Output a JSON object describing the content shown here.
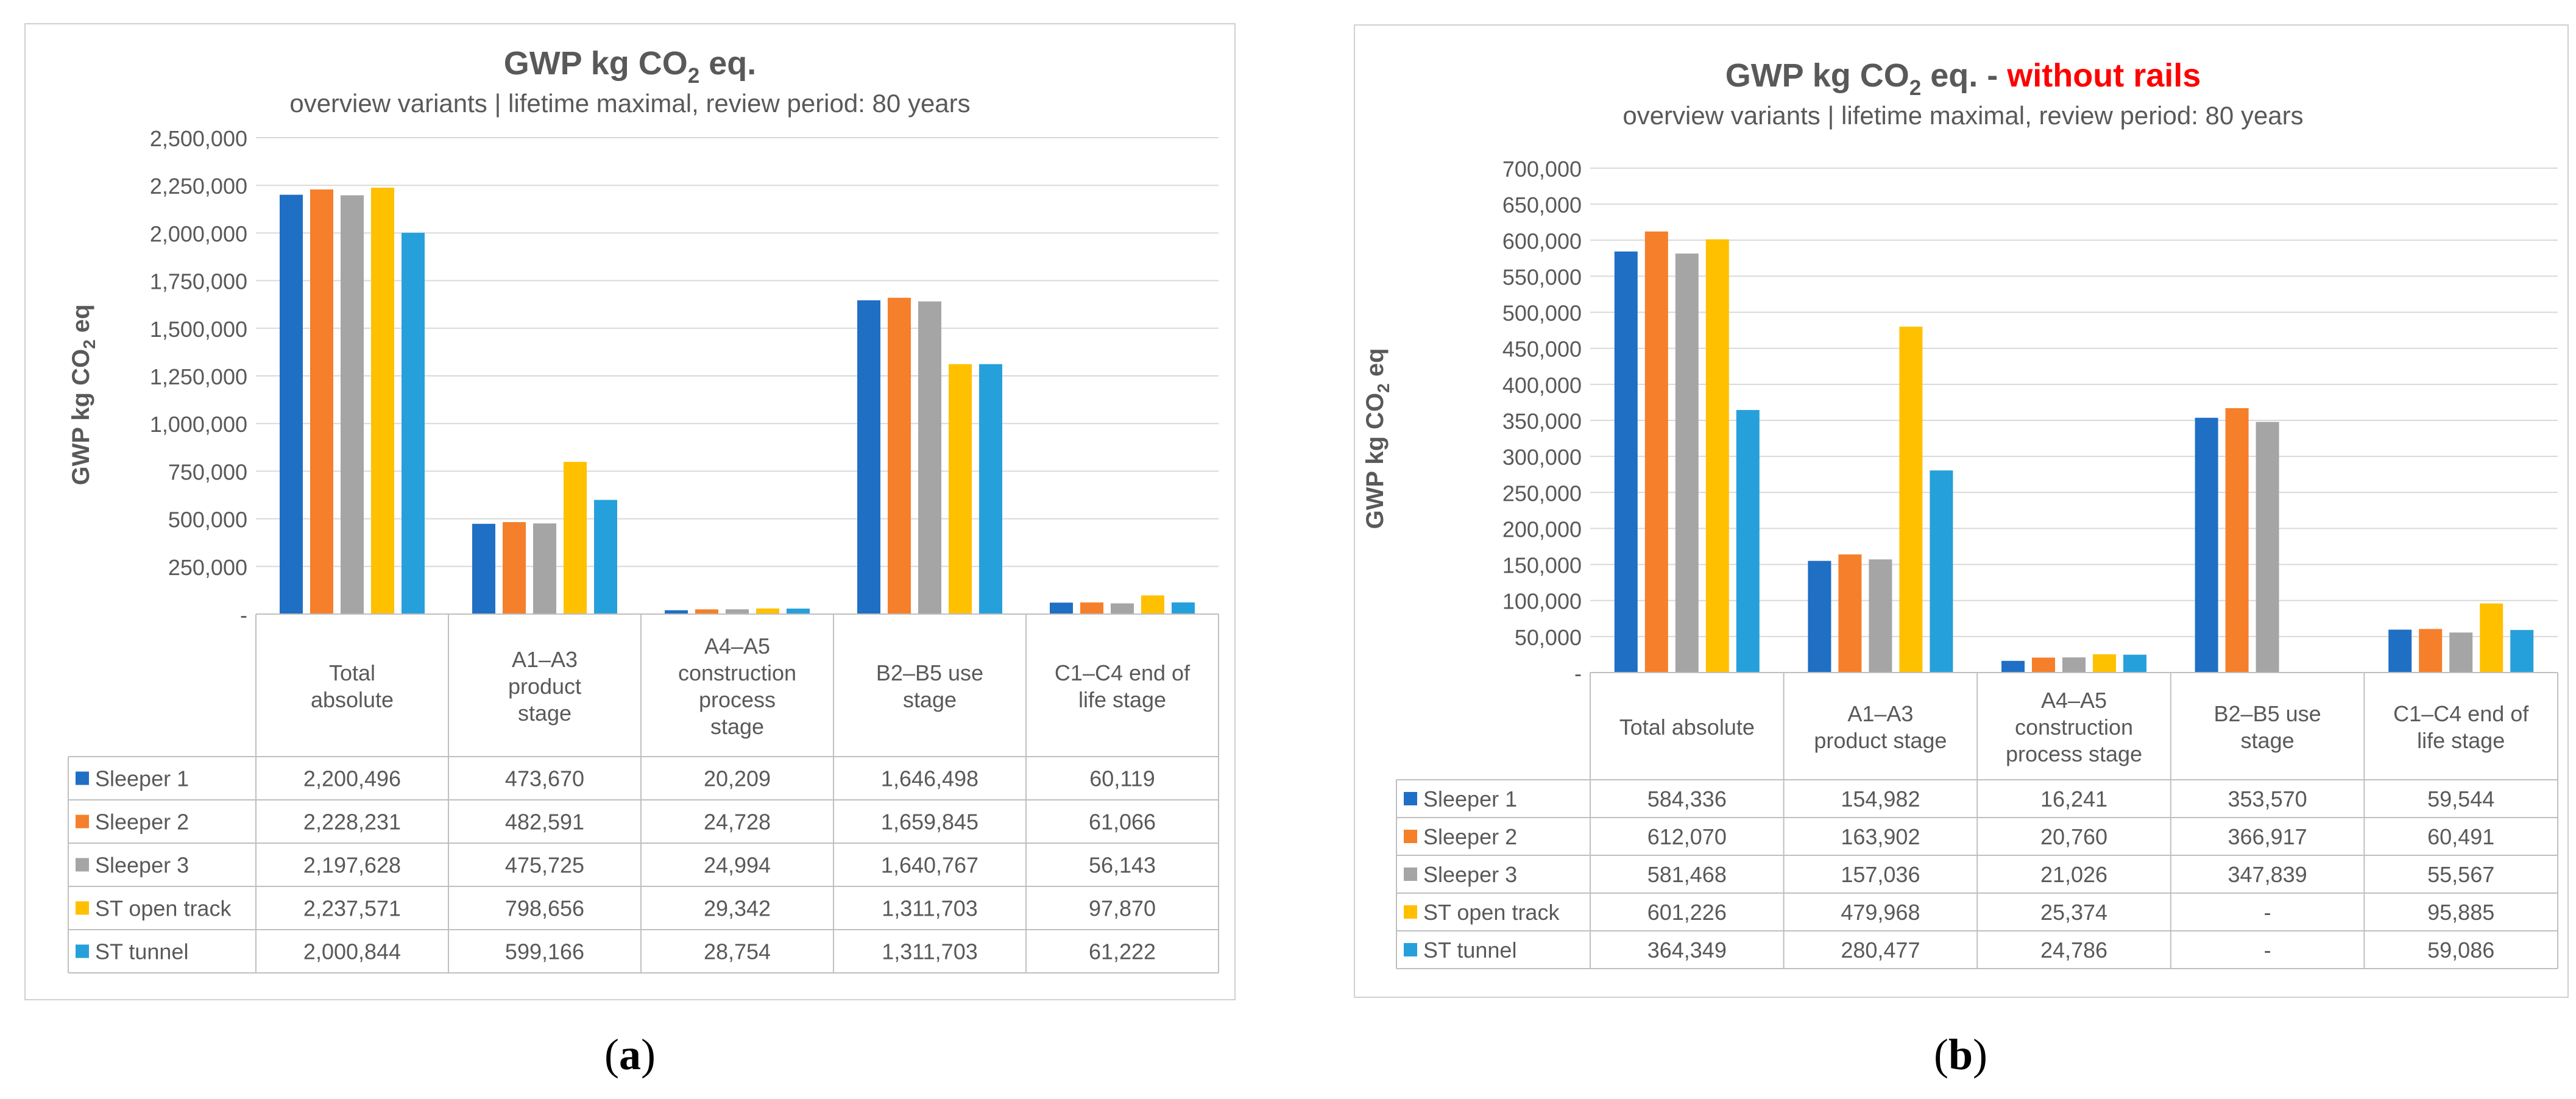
{
  "chart_data": [
    {
      "type": "bar",
      "title": "GWP kg CO",
      "title_sub": "2",
      "title_end": " eq.",
      "title_red": "",
      "subtitle": "overview variants | lifetime maximal, review period: 80 years",
      "ylabel": "GWP kg CO",
      "ylabel_sub": "2",
      "ylabel_end": " eq",
      "ylim": [
        0,
        2500000
      ],
      "yticks": [
        "-",
        "250,000",
        "500,000",
        "750,000",
        "1,000,000",
        "1,250,000",
        "1,500,000",
        "1,750,000",
        "2,000,000",
        "2,250,000",
        "2,500,000"
      ],
      "categories": [
        [
          "Total",
          "absolute"
        ],
        [
          "A1–A3",
          "product",
          "stage"
        ],
        [
          "A4–A5",
          "construction",
          "process",
          "stage"
        ],
        [
          "B2–B5 use",
          "stage"
        ],
        [
          "C1–C4 end of",
          "life stage"
        ]
      ],
      "series": [
        {
          "name": "Sleeper 1",
          "color": "#1F6FC5",
          "values": [
            2200496,
            473670,
            20209,
            1646498,
            60119
          ],
          "labels": [
            "2,200,496",
            "473,670",
            "20,209",
            "1,646,498",
            "60,119"
          ]
        },
        {
          "name": "Sleeper 2",
          "color": "#F57F2A",
          "values": [
            2228231,
            482591,
            24728,
            1659845,
            61066
          ],
          "labels": [
            "2,228,231",
            "482,591",
            "24,728",
            "1,659,845",
            "61,066"
          ]
        },
        {
          "name": "Sleeper 3",
          "color": "#A5A5A5",
          "values": [
            2197628,
            475725,
            24994,
            1640767,
            56143
          ],
          "labels": [
            "2,197,628",
            "475,725",
            "24,994",
            "1,640,767",
            "56,143"
          ]
        },
        {
          "name": "ST open track",
          "color": "#FFC000",
          "values": [
            2237571,
            798656,
            29342,
            1311703,
            97870
          ],
          "labels": [
            "2,237,571",
            "798,656",
            "29,342",
            "1,311,703",
            "97,870"
          ]
        },
        {
          "name": "ST tunnel",
          "color": "#26A0DA",
          "values": [
            2000844,
            599166,
            28754,
            1311703,
            61222
          ],
          "labels": [
            "2,000,844",
            "599,166",
            "28,754",
            "1,311,703",
            "61,222"
          ]
        }
      ]
    },
    {
      "type": "bar",
      "title": "GWP kg CO",
      "title_sub": "2",
      "title_end": " eq. - ",
      "title_red": "without rails",
      "subtitle": "overview variants | lifetime maximal, review period: 80 years",
      "ylabel": "GWP kg CO",
      "ylabel_sub": "2",
      "ylabel_end": " eq",
      "ylim": [
        0,
        700000
      ],
      "yticks": [
        "-",
        "50,000",
        "100,000",
        "150,000",
        "200,000",
        "250,000",
        "300,000",
        "350,000",
        "400,000",
        "450,000",
        "500,000",
        "550,000",
        "600,000",
        "650,000",
        "700,000"
      ],
      "categories": [
        [
          "Total absolute"
        ],
        [
          "A1–A3",
          "product stage"
        ],
        [
          "A4–A5",
          "construction",
          "process stage"
        ],
        [
          "B2–B5 use",
          "stage"
        ],
        [
          "C1–C4 end of",
          "life stage"
        ]
      ],
      "series": [
        {
          "name": "Sleeper 1",
          "color": "#1F6FC5",
          "values": [
            584336,
            154982,
            16241,
            353570,
            59544
          ],
          "labels": [
            "584,336",
            "154,982",
            "16,241",
            "353,570",
            "59,544"
          ]
        },
        {
          "name": "Sleeper 2",
          "color": "#F57F2A",
          "values": [
            612070,
            163902,
            20760,
            366917,
            60491
          ],
          "labels": [
            "612,070",
            "163,902",
            "20,760",
            "366,917",
            "60,491"
          ]
        },
        {
          "name": "Sleeper 3",
          "color": "#A5A5A5",
          "values": [
            581468,
            157036,
            21026,
            347839,
            55567
          ],
          "labels": [
            "581,468",
            "157,036",
            "21,026",
            "347,839",
            "55,567"
          ]
        },
        {
          "name": "ST open track",
          "color": "#FFC000",
          "values": [
            601226,
            479968,
            25374,
            0,
            95885
          ],
          "labels": [
            "601,226",
            "479,968",
            "25,374",
            "-",
            "95,885"
          ]
        },
        {
          "name": "ST tunnel",
          "color": "#26A0DA",
          "values": [
            364349,
            280477,
            24786,
            0,
            59086
          ],
          "labels": [
            "364,349",
            "280,477",
            "24,786",
            "-",
            "59,086"
          ]
        }
      ]
    }
  ],
  "captions": [
    "a",
    "b"
  ]
}
